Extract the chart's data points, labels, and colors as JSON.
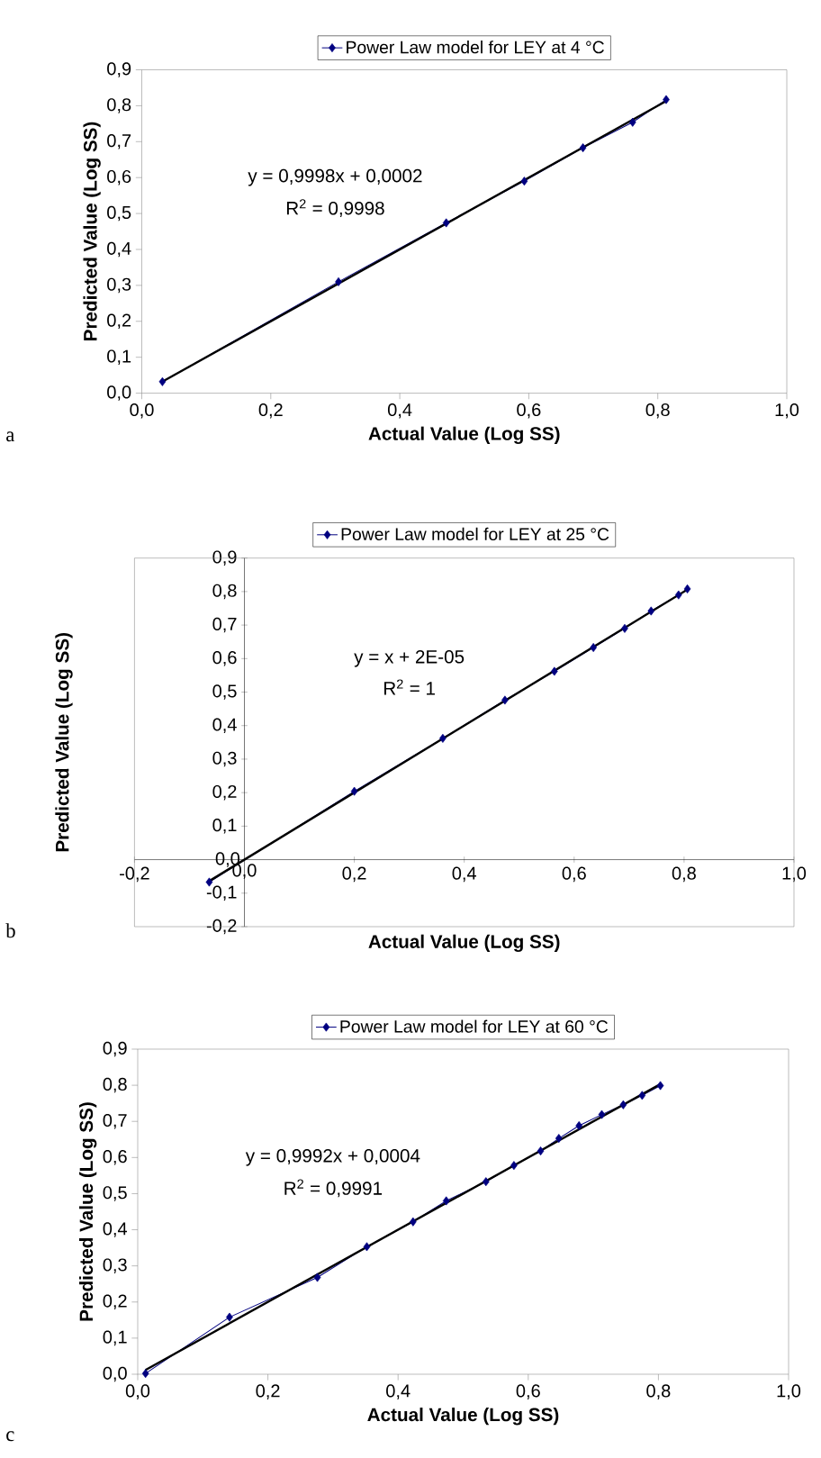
{
  "chart_data": [
    {
      "type": "line",
      "legend": "top",
      "xlabel": "Actual Value (Log SS)",
      "ylabel": "Predicted Value (Log SS)",
      "xlim": [
        0,
        1
      ],
      "ylim": [
        0,
        0.9
      ],
      "xticks": [
        {
          "value": 0,
          "label": "0,0"
        },
        {
          "value": 0.2,
          "label": "0,2"
        },
        {
          "value": 0.4,
          "label": "0,4"
        },
        {
          "value": 0.6,
          "label": "0,6"
        },
        {
          "value": 0.8,
          "label": "0,8"
        },
        {
          "value": 1,
          "label": "1,0"
        }
      ],
      "yticks": [
        {
          "value": 0,
          "label": "0,0"
        },
        {
          "value": 0.1,
          "label": "0,1"
        },
        {
          "value": 0.2,
          "label": "0,2"
        },
        {
          "value": 0.3,
          "label": "0,3"
        },
        {
          "value": 0.4,
          "label": "0,4"
        },
        {
          "value": 0.5,
          "label": "0,5"
        },
        {
          "value": 0.6,
          "label": "0,6"
        },
        {
          "value": 0.7,
          "label": "0,7"
        },
        {
          "value": 0.8,
          "label": "0,8"
        },
        {
          "value": 0.9,
          "label": "0,9"
        }
      ],
      "series": [
        {
          "name": "Power Law model for LEY at 4 °C",
          "color": "#000080",
          "marker": "diamond",
          "x": [
            0.032,
            0.305,
            0.472,
            0.593,
            0.684,
            0.761,
            0.813
          ],
          "values": [
            0.032,
            0.31,
            0.474,
            0.59,
            0.683,
            0.754,
            0.817
          ]
        },
        {
          "type": "line",
          "color": "#000000",
          "marker": "none",
          "x": [
            0.032,
            0.813
          ],
          "values": [
            0.032,
            0.813
          ]
        }
      ],
      "annotations": [
        "y = 0,9998x + 0,0002",
        "R$^{2}$ = 0,9998",
        "a"
      ]
    },
    {
      "type": "line",
      "legend": "top",
      "xlabel": "Actual Value (Log SS)",
      "ylabel": "Predicted Value (Log SS)",
      "xlim": [
        -0.2,
        1
      ],
      "ylim": [
        -0.2,
        0.9
      ],
      "xticks": [
        {
          "value": -0.2,
          "label": "-0,2"
        },
        {
          "value": 0,
          "label": "0,0"
        },
        {
          "value": 0.2,
          "label": "0,2"
        },
        {
          "value": 0.4,
          "label": "0,4"
        },
        {
          "value": 0.6,
          "label": "0,6"
        },
        {
          "value": 0.8,
          "label": "0,8"
        },
        {
          "value": 1,
          "label": "1,0"
        }
      ],
      "yticks": [
        {
          "value": -0.2,
          "label": "-0,2"
        },
        {
          "value": -0.1,
          "label": "-0,1"
        },
        {
          "value": 0,
          "label": "0,0"
        },
        {
          "value": 0.1,
          "label": "0,1"
        },
        {
          "value": 0.2,
          "label": "0,2"
        },
        {
          "value": 0.3,
          "label": "0,3"
        },
        {
          "value": 0.4,
          "label": "0,4"
        },
        {
          "value": 0.5,
          "label": "0,5"
        },
        {
          "value": 0.6,
          "label": "0,6"
        },
        {
          "value": 0.7,
          "label": "0,7"
        },
        {
          "value": 0.8,
          "label": "0,8"
        },
        {
          "value": 0.9,
          "label": "0,9"
        }
      ],
      "series": [
        {
          "name": "Power Law model for LEY at 25 °C",
          "color": "#000080",
          "marker": "diamond",
          "x": [
            -0.064,
            0.2,
            0.361,
            0.474,
            0.564,
            0.635,
            0.692,
            0.74,
            0.79,
            0.806
          ],
          "values": [
            -0.067,
            0.204,
            0.362,
            0.476,
            0.562,
            0.633,
            0.69,
            0.742,
            0.79,
            0.808
          ]
        },
        {
          "type": "line",
          "color": "#000000",
          "marker": "none",
          "x": [
            -0.064,
            0.806
          ],
          "values": [
            -0.064,
            0.806
          ]
        }
      ],
      "annotations": [
        "y = x + 2E-05",
        "R$^{2}$ = 1",
        "b"
      ]
    },
    {
      "type": "line",
      "legend": "top",
      "xlabel": "Actual Value (Log SS)",
      "ylabel": "Predicted Value (Log SS)",
      "xlim": [
        0,
        1
      ],
      "ylim": [
        0,
        0.9
      ],
      "xticks": [
        {
          "value": 0,
          "label": "0,0"
        },
        {
          "value": 0.2,
          "label": "0,2"
        },
        {
          "value": 0.4,
          "label": "0,4"
        },
        {
          "value": 0.6,
          "label": "0,6"
        },
        {
          "value": 0.8,
          "label": "0,8"
        },
        {
          "value": 1,
          "label": "1,0"
        }
      ],
      "yticks": [
        {
          "value": 0,
          "label": "0,0"
        },
        {
          "value": 0.1,
          "label": "0,1"
        },
        {
          "value": 0.2,
          "label": "0,2"
        },
        {
          "value": 0.3,
          "label": "0,3"
        },
        {
          "value": 0.4,
          "label": "0,4"
        },
        {
          "value": 0.5,
          "label": "0,5"
        },
        {
          "value": 0.6,
          "label": "0,6"
        },
        {
          "value": 0.7,
          "label": "0,7"
        },
        {
          "value": 0.8,
          "label": "0,8"
        },
        {
          "value": 0.9,
          "label": "0,9"
        }
      ],
      "series": [
        {
          "name": "Power Law model for LEY at 60 °C",
          "color": "#000080",
          "marker": "diamond",
          "x": [
            0.012,
            0.141,
            0.276,
            0.352,
            0.423,
            0.474,
            0.535,
            0.578,
            0.619,
            0.647,
            0.678,
            0.713,
            0.746,
            0.775,
            0.803
          ],
          "values": [
            0.002,
            0.158,
            0.268,
            0.353,
            0.422,
            0.48,
            0.533,
            0.578,
            0.618,
            0.653,
            0.688,
            0.719,
            0.746,
            0.772,
            0.799
          ]
        },
        {
          "type": "line",
          "color": "#000000",
          "marker": "none",
          "x": [
            0.012,
            0.803
          ],
          "values": [
            0.012,
            0.803
          ]
        }
      ],
      "annotations": [
        "y = 0,9992x + 0,0004",
        "R$^{2}$ = 0,9991",
        "c"
      ]
    }
  ]
}
